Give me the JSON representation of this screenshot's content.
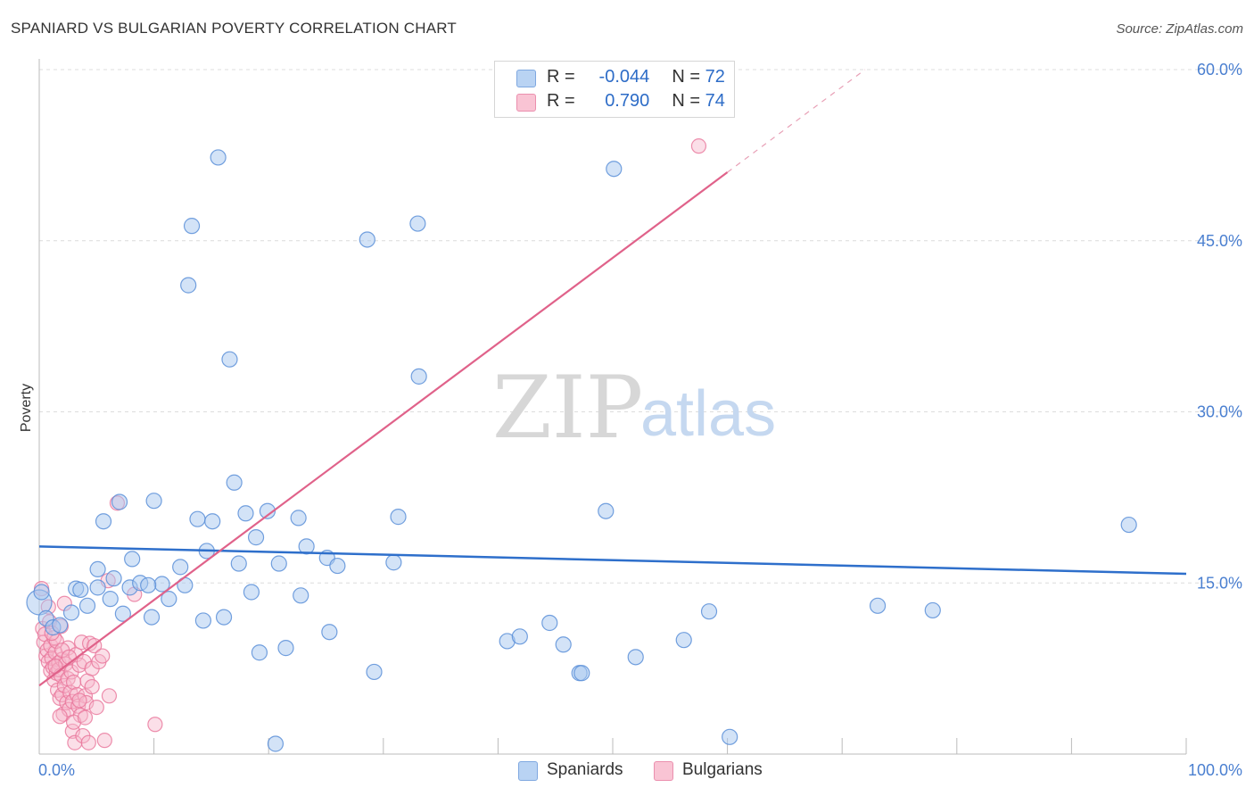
{
  "title": "SPANIARD VS BULGARIAN POVERTY CORRELATION CHART",
  "source": "Source: ZipAtlas.com",
  "watermark": {
    "zip": "ZIP",
    "atlas": "atlas"
  },
  "legend": {
    "rows": [
      {
        "r_label": "R =",
        "r_value": "-0.044",
        "n_label": "N =",
        "n_value": "72"
      },
      {
        "r_label": "R =",
        "r_value": "0.790",
        "n_label": "N =",
        "n_value": "74"
      }
    ]
  },
  "bottom_legend": [
    "Spaniards",
    "Bulgarians"
  ],
  "colors": {
    "blue_fill": "#a8c8f0",
    "blue_stroke": "#5b8fd8",
    "blue_line": "#2e6fcb",
    "pink_fill": "#f6b8cb",
    "pink_stroke": "#e8749a",
    "pink_line": "#e0628a"
  },
  "chart_data": {
    "type": "scatter",
    "title": "SPANIARD VS BULGARIAN POVERTY CORRELATION CHART",
    "xlabel": "",
    "ylabel": "Poverty",
    "xlim": [
      0,
      100
    ],
    "ylim": [
      0,
      60
    ],
    "x_tick_labels": [
      "0.0%",
      "100.0%"
    ],
    "y_ticks": [
      15,
      30,
      45,
      60
    ],
    "y_tick_labels": [
      "15.0%",
      "30.0%",
      "45.0%",
      "60.0%"
    ],
    "series": [
      {
        "name": "Spaniards",
        "r": -0.044,
        "n": 72,
        "trend": {
          "x0": 0,
          "y0": 18.2,
          "x1": 100,
          "y1": 15.8
        },
        "points": [
          [
            0.0,
            13.3
          ],
          [
            0.6,
            11.9
          ],
          [
            1.2,
            11.1
          ],
          [
            1.8,
            11.3
          ],
          [
            2.8,
            12.4
          ],
          [
            3.2,
            14.5
          ],
          [
            3.6,
            14.4
          ],
          [
            4.2,
            13.0
          ],
          [
            5.1,
            14.6
          ],
          [
            5.1,
            16.2
          ],
          [
            5.6,
            20.4
          ],
          [
            6.2,
            13.6
          ],
          [
            6.5,
            15.4
          ],
          [
            7.3,
            12.3
          ],
          [
            7.0,
            22.1
          ],
          [
            8.1,
            17.1
          ],
          [
            7.9,
            14.6
          ],
          [
            8.8,
            15.0
          ],
          [
            9.8,
            12.0
          ],
          [
            10.0,
            22.2
          ],
          [
            10.7,
            14.9
          ],
          [
            9.5,
            14.8
          ],
          [
            11.3,
            13.6
          ],
          [
            12.3,
            16.4
          ],
          [
            12.7,
            14.8
          ],
          [
            13.0,
            41.1
          ],
          [
            13.3,
            46.3
          ],
          [
            13.8,
            20.6
          ],
          [
            14.3,
            11.7
          ],
          [
            14.6,
            17.8
          ],
          [
            15.1,
            20.4
          ],
          [
            15.6,
            52.3
          ],
          [
            16.1,
            12.0
          ],
          [
            16.6,
            34.6
          ],
          [
            17.0,
            23.8
          ],
          [
            17.4,
            16.7
          ],
          [
            18.0,
            21.1
          ],
          [
            18.5,
            14.2
          ],
          [
            18.9,
            19.0
          ],
          [
            19.2,
            8.9
          ],
          [
            19.9,
            21.3
          ],
          [
            20.6,
            0.9
          ],
          [
            20.9,
            16.7
          ],
          [
            21.5,
            9.3
          ],
          [
            22.6,
            20.7
          ],
          [
            22.8,
            13.9
          ],
          [
            23.3,
            18.2
          ],
          [
            25.1,
            17.2
          ],
          [
            25.3,
            10.7
          ],
          [
            26.0,
            16.5
          ],
          [
            28.6,
            45.1
          ],
          [
            29.2,
            7.2
          ],
          [
            30.9,
            16.8
          ],
          [
            31.3,
            20.8
          ],
          [
            33.0,
            46.5
          ],
          [
            33.1,
            33.1
          ],
          [
            40.8,
            9.9
          ],
          [
            41.9,
            10.3
          ],
          [
            44.5,
            11.5
          ],
          [
            45.7,
            9.6
          ],
          [
            47.1,
            7.1
          ],
          [
            47.3,
            7.1
          ],
          [
            49.4,
            21.3
          ],
          [
            50.1,
            51.3
          ],
          [
            52.0,
            8.5
          ],
          [
            56.2,
            10.0
          ],
          [
            58.4,
            12.5
          ],
          [
            60.2,
            1.5
          ],
          [
            73.1,
            13.0
          ],
          [
            77.9,
            12.6
          ],
          [
            95.0,
            20.1
          ],
          [
            0.2,
            14.2
          ]
        ]
      },
      {
        "name": "Bulgarians",
        "r": 0.79,
        "n": 74,
        "trend": {
          "x0": 0,
          "y0": 6.0,
          "x1": 60,
          "y1": 51.0
        },
        "trend_extension": {
          "x0": 60,
          "y0": 51.0,
          "x1": 72,
          "y1": 60.0
        },
        "points": [
          [
            0.2,
            14.5
          ],
          [
            0.3,
            11.0
          ],
          [
            0.4,
            9.8
          ],
          [
            0.5,
            10.5
          ],
          [
            0.6,
            8.6
          ],
          [
            0.7,
            9.1
          ],
          [
            0.8,
            8.1
          ],
          [
            0.9,
            11.6
          ],
          [
            1.0,
            7.3
          ],
          [
            1.0,
            9.5
          ],
          [
            1.1,
            8.4
          ],
          [
            1.2,
            7.6
          ],
          [
            1.3,
            10.2
          ],
          [
            1.3,
            6.5
          ],
          [
            1.4,
            8.9
          ],
          [
            1.5,
            7.1
          ],
          [
            1.5,
            9.9
          ],
          [
            1.6,
            5.6
          ],
          [
            1.7,
            8.0
          ],
          [
            1.7,
            7.4
          ],
          [
            1.8,
            4.9
          ],
          [
            1.9,
            6.9
          ],
          [
            1.9,
            11.2
          ],
          [
            2.0,
            5.2
          ],
          [
            2.0,
            8.3
          ],
          [
            2.1,
            3.5
          ],
          [
            2.2,
            6.0
          ],
          [
            2.2,
            13.2
          ],
          [
            2.3,
            7.9
          ],
          [
            2.4,
            4.5
          ],
          [
            2.5,
            6.6
          ],
          [
            2.5,
            9.3
          ],
          [
            2.6,
            3.9
          ],
          [
            2.7,
            5.4
          ],
          [
            2.8,
            7.2
          ],
          [
            2.9,
            2.0
          ],
          [
            2.9,
            4.6
          ],
          [
            3.0,
            6.3
          ],
          [
            3.1,
            1.0
          ],
          [
            3.2,
            8.7
          ],
          [
            3.3,
            5.2
          ],
          [
            3.4,
            4.2
          ],
          [
            3.5,
            7.8
          ],
          [
            3.6,
            3.4
          ],
          [
            3.7,
            9.8
          ],
          [
            3.8,
            1.6
          ],
          [
            3.9,
            8.1
          ],
          [
            4.0,
            5.1
          ],
          [
            4.1,
            4.5
          ],
          [
            4.2,
            6.4
          ],
          [
            4.3,
            1.0
          ],
          [
            4.4,
            9.7
          ],
          [
            4.6,
            7.5
          ],
          [
            4.8,
            9.5
          ],
          [
            5.0,
            4.1
          ],
          [
            5.2,
            8.1
          ],
          [
            5.5,
            8.6
          ],
          [
            5.7,
            1.2
          ],
          [
            6.0,
            15.2
          ],
          [
            6.1,
            5.1
          ],
          [
            6.8,
            22.0
          ],
          [
            8.3,
            14.0
          ],
          [
            10.1,
            2.6
          ],
          [
            57.5,
            53.3
          ],
          [
            0.8,
            12.9
          ],
          [
            1.1,
            10.6
          ],
          [
            1.4,
            7.7
          ],
          [
            2.0,
            9.1
          ],
          [
            2.6,
            8.5
          ],
          [
            3.0,
            2.8
          ],
          [
            3.5,
            4.7
          ],
          [
            4.0,
            3.2
          ],
          [
            4.6,
            5.9
          ],
          [
            1.8,
            3.3
          ]
        ]
      }
    ]
  }
}
